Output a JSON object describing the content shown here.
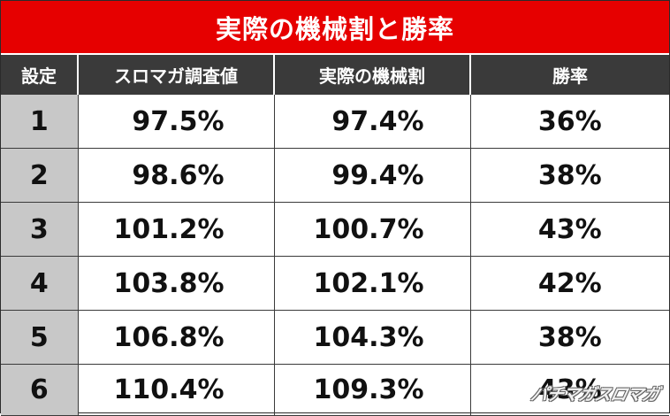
{
  "title": "実際の機械割と勝率",
  "table": {
    "headers": [
      "設定",
      "スロマガ調査値",
      "実際の機械割",
      "勝率"
    ],
    "rows": [
      {
        "setting": "1",
        "survey": "97.5%",
        "actual": "97.4%",
        "win_rate": "36%"
      },
      {
        "setting": "2",
        "survey": "98.6%",
        "actual": "99.4%",
        "win_rate": "38%"
      },
      {
        "setting": "3",
        "survey": "101.2%",
        "actual": "100.7%",
        "win_rate": "43%"
      },
      {
        "setting": "4",
        "survey": "103.8%",
        "actual": "102.1%",
        "win_rate": "42%"
      },
      {
        "setting": "5",
        "survey": "106.8%",
        "actual": "104.3%",
        "win_rate": "38%"
      },
      {
        "setting": "6",
        "survey": "110.4%",
        "actual": "109.3%",
        "win_rate": "43%"
      }
    ]
  },
  "watermark": "パチマガスロマガ",
  "colors": {
    "title_bg": "#e60000",
    "header_bg": "#3a3a3a",
    "setting_col_bg": "#c8c8c8"
  }
}
